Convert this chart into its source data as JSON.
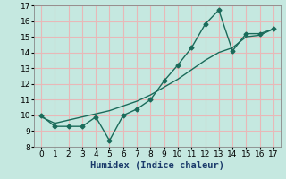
{
  "xlabel": "Humidex (Indice chaleur)",
  "background_color": "#c5e8e0",
  "grid_color": "#e8b8b8",
  "line_color": "#1a6b5a",
  "x_data": [
    0,
    1,
    2,
    3,
    4,
    5,
    6,
    7,
    8,
    9,
    10,
    11,
    12,
    13,
    14,
    15,
    16,
    17
  ],
  "y_jagged": [
    10.0,
    9.3,
    9.3,
    9.3,
    9.9,
    8.4,
    10.0,
    10.4,
    11.0,
    12.2,
    13.2,
    14.3,
    15.8,
    16.7,
    14.1,
    15.2,
    15.2,
    15.5
  ],
  "x_trend": [
    0,
    1,
    2,
    3,
    4,
    5,
    6,
    7,
    8,
    9,
    10,
    11,
    12,
    13,
    14,
    15,
    16,
    17
  ],
  "y_trend": [
    9.9,
    9.5,
    9.7,
    9.9,
    10.1,
    10.3,
    10.6,
    10.9,
    11.3,
    11.8,
    12.3,
    12.9,
    13.5,
    14.0,
    14.3,
    15.0,
    15.1,
    15.5
  ],
  "ylim": [
    8,
    17
  ],
  "xlim": [
    -0.5,
    17.5
  ],
  "yticks": [
    8,
    9,
    10,
    11,
    12,
    13,
    14,
    15,
    16,
    17
  ],
  "xticks": [
    0,
    1,
    2,
    3,
    4,
    5,
    6,
    7,
    8,
    9,
    10,
    11,
    12,
    13,
    14,
    15,
    16,
    17
  ],
  "tick_fontsize": 6.5,
  "xlabel_fontsize": 7.5
}
